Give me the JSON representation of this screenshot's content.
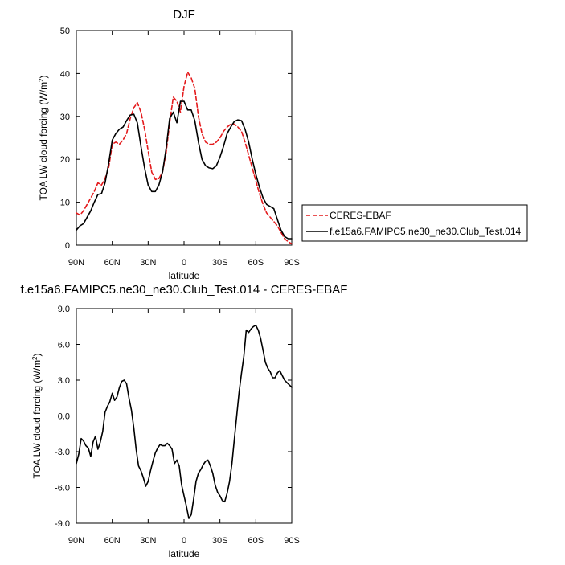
{
  "figure": {
    "top_title": "DJF",
    "legend_placement": "right of top panel"
  },
  "chart_data": [
    {
      "type": "line",
      "title": "DJF",
      "xlabel": "latitude",
      "ylabel_main": "TOA LW cloud forcing (W/m",
      "ylabel_sup": "2",
      "ylabel_close": ")",
      "xlim": [
        90,
        -90
      ],
      "ylim": [
        0,
        50
      ],
      "x_ticks": [
        {
          "value": 90,
          "label": "90N"
        },
        {
          "value": 60,
          "label": "60N"
        },
        {
          "value": 30,
          "label": "30N"
        },
        {
          "value": 0,
          "label": "0"
        },
        {
          "value": -30,
          "label": "30S"
        },
        {
          "value": -60,
          "label": "60S"
        },
        {
          "value": -90,
          "label": "90S"
        }
      ],
      "y_ticks": [
        {
          "value": 0,
          "label": "0"
        },
        {
          "value": 10,
          "label": "10"
        },
        {
          "value": 20,
          "label": "20"
        },
        {
          "value": 30,
          "label": "30"
        },
        {
          "value": 40,
          "label": "40"
        },
        {
          "value": 50,
          "label": "50"
        }
      ],
      "grid": false,
      "legend": [
        {
          "name": "CERES-EBAF",
          "color": "#e41a1c",
          "dash": true
        },
        {
          "name": "f.e15a6.FAMIPC5.ne30_ne30.Club_Test.014",
          "color": "#000000",
          "dash": false
        }
      ],
      "series": [
        {
          "name": "CERES-EBAF",
          "color": "#e41a1c",
          "dashed": true,
          "x": [
            90,
            87,
            84,
            81,
            78,
            75,
            72,
            69,
            66,
            63,
            60,
            57,
            54,
            51,
            48,
            45,
            42,
            39,
            36,
            33,
            30,
            27,
            24,
            21,
            18,
            15,
            12,
            9,
            6,
            3,
            0,
            -3,
            -6,
            -9,
            -12,
            -15,
            -18,
            -21,
            -24,
            -27,
            -30,
            -33,
            -36,
            -39,
            -42,
            -45,
            -48,
            -51,
            -54,
            -57,
            -60,
            -63,
            -66,
            -69,
            -72,
            -75,
            -78,
            -81,
            -84,
            -87,
            -90
          ],
          "y": [
            7.5,
            7,
            8,
            9.5,
            11,
            12.5,
            14.5,
            14,
            15.5,
            18,
            23.5,
            24,
            23.5,
            24.5,
            26,
            29.5,
            32,
            33.2,
            31,
            27,
            22,
            17,
            15.3,
            15.5,
            17,
            21.5,
            28.5,
            34.5,
            33.5,
            31,
            37,
            40.3,
            39,
            36.5,
            30,
            26,
            24,
            23.5,
            23.5,
            24,
            25,
            26.5,
            27.5,
            28.2,
            28.2,
            27.5,
            26.5,
            24,
            21,
            18,
            15,
            12,
            9.5,
            7.5,
            6.5,
            5.5,
            4.5,
            3,
            1.5,
            0.8,
            0.3
          ]
        },
        {
          "name": "f.e15a6.FAMIPC5.ne30_ne30.Club_Test.014",
          "color": "#000000",
          "dashed": false,
          "x": [
            90,
            87,
            84,
            81,
            78,
            75,
            72,
            69,
            66,
            63,
            60,
            57,
            54,
            51,
            48,
            45,
            42,
            39,
            36,
            33,
            30,
            27,
            24,
            21,
            18,
            15,
            12,
            9,
            6,
            3,
            0,
            -3,
            -6,
            -9,
            -12,
            -15,
            -18,
            -21,
            -24,
            -27,
            -30,
            -33,
            -36,
            -39,
            -42,
            -45,
            -48,
            -51,
            -54,
            -57,
            -60,
            -63,
            -66,
            -69,
            -72,
            -75,
            -78,
            -81,
            -84,
            -87,
            -90
          ],
          "y": [
            3.5,
            4.5,
            5,
            6.5,
            8,
            10,
            11.8,
            12,
            14.5,
            19,
            24.5,
            26,
            27,
            27.5,
            29,
            30.3,
            30.5,
            28.5,
            23,
            18,
            14,
            12.5,
            12.5,
            14,
            17,
            22.5,
            29.5,
            31,
            28.5,
            33.5,
            33.5,
            31.5,
            31.5,
            29,
            24,
            20,
            18.5,
            18,
            17.8,
            18.5,
            20.5,
            23,
            26,
            27.5,
            28.8,
            29.2,
            29,
            27,
            24,
            20,
            16.5,
            13.5,
            11,
            9.5,
            9,
            8.5,
            6,
            3.5,
            2,
            1.5,
            1.5
          ]
        }
      ]
    },
    {
      "type": "line",
      "title": "f.e15a6.FAMIPC5.ne30_ne30.Club_Test.014 - CERES-EBAF",
      "xlabel": "latitude",
      "ylabel_main": "TOA LW cloud forcing (W/m",
      "ylabel_sup": "2",
      "ylabel_close": ")",
      "xlim": [
        90,
        -90
      ],
      "ylim": [
        -9,
        9
      ],
      "x_ticks": [
        {
          "value": 90,
          "label": "90N"
        },
        {
          "value": 60,
          "label": "60N"
        },
        {
          "value": 30,
          "label": "30N"
        },
        {
          "value": 0,
          "label": "0"
        },
        {
          "value": -30,
          "label": "30S"
        },
        {
          "value": -60,
          "label": "60S"
        },
        {
          "value": -90,
          "label": "90S"
        }
      ],
      "y_ticks": [
        {
          "value": -9,
          "label": "-9.0"
        },
        {
          "value": -6,
          "label": "-6.0"
        },
        {
          "value": -3,
          "label": "-3.0"
        },
        {
          "value": 0,
          "label": "0.0"
        },
        {
          "value": 3,
          "label": "3.0"
        },
        {
          "value": 6,
          "label": "6.0"
        },
        {
          "value": 9,
          "label": "9.0"
        }
      ],
      "grid": false,
      "series": [
        {
          "color": "#000000",
          "dashed": false,
          "x": [
            90,
            88,
            86,
            84,
            82,
            80,
            78,
            76,
            74,
            72,
            70,
            68,
            66,
            64,
            62,
            60,
            58,
            56,
            54,
            52,
            50,
            48,
            46,
            44,
            42,
            40,
            38,
            36,
            34,
            32,
            30,
            28,
            26,
            24,
            22,
            20,
            18,
            16,
            14,
            12,
            10,
            8,
            6,
            4,
            2,
            0,
            -2,
            -4,
            -6,
            -8,
            -10,
            -12,
            -14,
            -16,
            -18,
            -20,
            -22,
            -24,
            -26,
            -28,
            -30,
            -32,
            -34,
            -36,
            -38,
            -40,
            -42,
            -44,
            -46,
            -48,
            -50,
            -52,
            -54,
            -56,
            -58,
            -60,
            -62,
            -64,
            -66,
            -68,
            -70,
            -72,
            -74,
            -76,
            -78,
            -80,
            -82,
            -84,
            -86,
            -88,
            -90
          ],
          "y": [
            -4,
            -3.2,
            -1.9,
            -2.1,
            -2.5,
            -2.7,
            -3.4,
            -2.2,
            -1.7,
            -2.8,
            -2.2,
            -1.3,
            0.3,
            0.8,
            1.2,
            1.9,
            1.3,
            1.6,
            2.4,
            2.9,
            3.0,
            2.7,
            1.5,
            0.5,
            -1.0,
            -2.8,
            -4.2,
            -4.6,
            -5.2,
            -5.9,
            -5.5,
            -4.6,
            -3.8,
            -3.1,
            -2.7,
            -2.4,
            -2.5,
            -2.5,
            -2.3,
            -2.5,
            -2.8,
            -4.0,
            -3.7,
            -4.2,
            -5.8,
            -6.7,
            -7.6,
            -8.6,
            -8.3,
            -7.0,
            -5.5,
            -4.8,
            -4.5,
            -4.1,
            -3.8,
            -3.7,
            -4.2,
            -4.8,
            -5.8,
            -6.4,
            -6.7,
            -7.1,
            -7.2,
            -6.5,
            -5.5,
            -4.0,
            -2.0,
            0.0,
            2.0,
            3.6,
            5.0,
            7.2,
            7.0,
            7.3,
            7.5,
            7.6,
            7.2,
            6.5,
            5.5,
            4.5,
            4.0,
            3.7,
            3.2,
            3.2,
            3.6,
            3.8,
            3.4,
            3.0,
            2.8,
            2.6,
            2.4
          ]
        }
      ]
    }
  ]
}
